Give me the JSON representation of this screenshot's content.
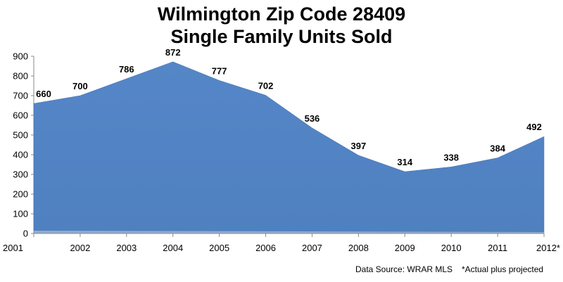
{
  "chart_data": {
    "type": "area",
    "title_line1": "Wilmington Zip Code 28409",
    "title_line2": "Single Family Units Sold",
    "categories": [
      "2001",
      "2002",
      "2003",
      "2004",
      "2005",
      "2006",
      "2007",
      "2008",
      "2009",
      "2010",
      "2011",
      "2012*"
    ],
    "values": [
      660,
      700,
      786,
      872,
      777,
      702,
      536,
      397,
      314,
      338,
      384,
      492
    ],
    "ylim": [
      0,
      900
    ],
    "yticks": [
      0,
      100,
      200,
      300,
      400,
      500,
      600,
      700,
      800,
      900
    ],
    "xlabel": "",
    "ylabel": "",
    "grid": false,
    "fill_color": "#5586c7",
    "data_labels": true
  },
  "footer": {
    "source": "Data Source: WRAR MLS",
    "note": "*Actual plus projected"
  }
}
